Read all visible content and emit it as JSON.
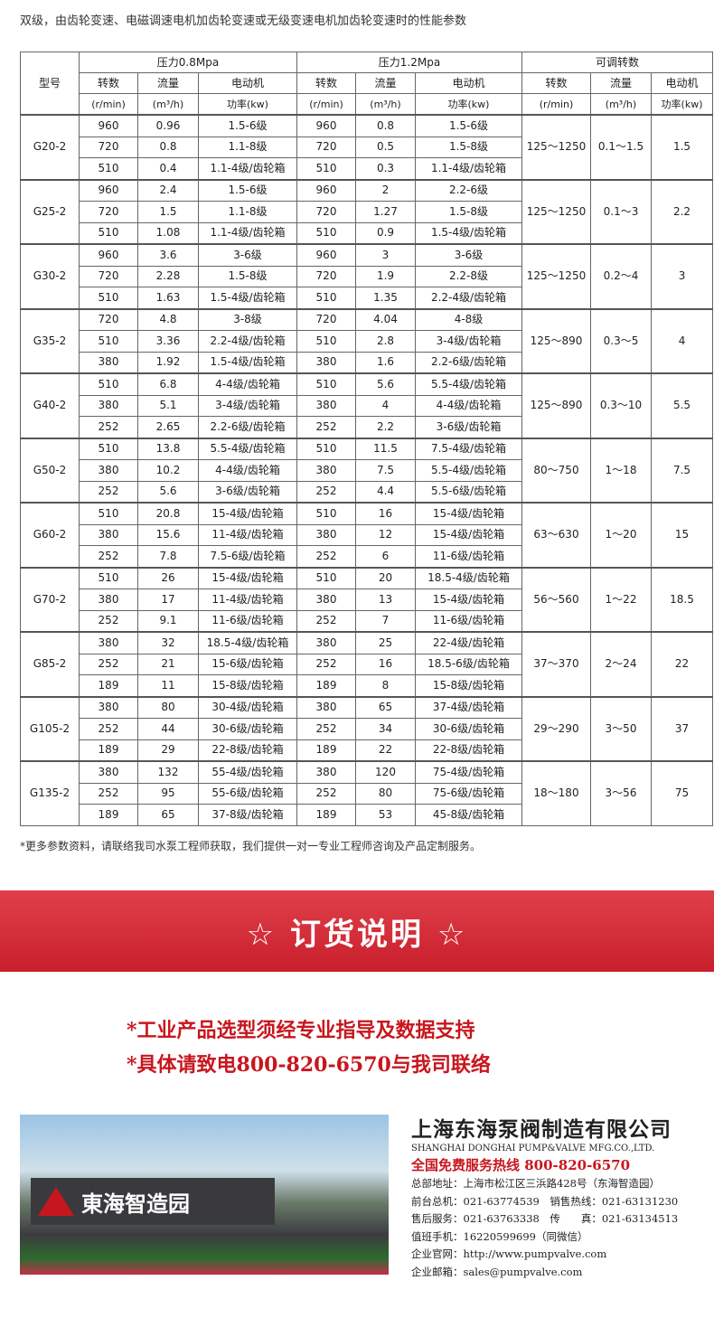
{
  "title": "双级，由齿轮变速、电磁调速电机加齿轮变速或无级变速电机加齿轮变速时的性能参数",
  "table": {
    "h_model": "型号",
    "h_p1": "压力0.8Mpa",
    "h_p2": "压力1.2Mpa",
    "h_adj": "可调转数",
    "sub": [
      "转数",
      "流量",
      "电动机",
      "转数",
      "流量",
      "电动机",
      "转数",
      "流量",
      "电动机"
    ],
    "units": [
      "(r/min)",
      "(m³/h)",
      "功率(kw)",
      "(r/min)",
      "(m³/h)",
      "功率(kw)",
      "(r/min)",
      "(m³/h)",
      "功率(kw)"
    ],
    "groups": [
      {
        "model": "G20-2",
        "rows": [
          [
            "960",
            "0.96",
            "1.5-6级",
            "960",
            "0.8",
            "1.5-6级"
          ],
          [
            "720",
            "0.8",
            "1.1-8级",
            "720",
            "0.5",
            "1.5-8级"
          ],
          [
            "510",
            "0.4",
            "1.1-4级/齿轮箱",
            "510",
            "0.3",
            "1.1-4级/齿轮箱"
          ]
        ],
        "adj_speed": "125～1250",
        "adj_flow": "0.1～1.5",
        "adj_power": "1.5"
      },
      {
        "model": "G25-2",
        "rows": [
          [
            "960",
            "2.4",
            "1.5-6级",
            "960",
            "2",
            "2.2-6级"
          ],
          [
            "720",
            "1.5",
            "1.1-8级",
            "720",
            "1.27",
            "1.5-8级"
          ],
          [
            "510",
            "1.08",
            "1.1-4级/齿轮箱",
            "510",
            "0.9",
            "1.5-4级/齿轮箱"
          ]
        ],
        "adj_speed": "125～1250",
        "adj_flow": "0.1～3",
        "adj_power": "2.2"
      },
      {
        "model": "G30-2",
        "rows": [
          [
            "960",
            "3.6",
            "3-6级",
            "960",
            "3",
            "3-6级"
          ],
          [
            "720",
            "2.28",
            "1.5-8级",
            "720",
            "1.9",
            "2.2-8级"
          ],
          [
            "510",
            "1.63",
            "1.5-4级/齿轮箱",
            "510",
            "1.35",
            "2.2-4级/齿轮箱"
          ]
        ],
        "adj_speed": "125～1250",
        "adj_flow": "0.2～4",
        "adj_power": "3"
      },
      {
        "model": "G35-2",
        "rows": [
          [
            "720",
            "4.8",
            "3-8级",
            "720",
            "4.04",
            "4-8级"
          ],
          [
            "510",
            "3.36",
            "2.2-4级/齿轮箱",
            "510",
            "2.8",
            "3-4级/齿轮箱"
          ],
          [
            "380",
            "1.92",
            "1.5-4级/齿轮箱",
            "380",
            "1.6",
            "2.2-6级/齿轮箱"
          ]
        ],
        "adj_speed": "125～890",
        "adj_flow": "0.3～5",
        "adj_power": "4"
      },
      {
        "model": "G40-2",
        "rows": [
          [
            "510",
            "6.8",
            "4-4级/齿轮箱",
            "510",
            "5.6",
            "5.5-4级/齿轮箱"
          ],
          [
            "380",
            "5.1",
            "3-4级/齿轮箱",
            "380",
            "4",
            "4-4级/齿轮箱"
          ],
          [
            "252",
            "2.65",
            "2.2-6级/齿轮箱",
            "252",
            "2.2",
            "3-6级/齿轮箱"
          ]
        ],
        "adj_speed": "125～890",
        "adj_flow": "0.3～10",
        "adj_power": "5.5"
      },
      {
        "model": "G50-2",
        "rows": [
          [
            "510",
            "13.8",
            "5.5-4级/齿轮箱",
            "510",
            "11.5",
            "7.5-4级/齿轮箱"
          ],
          [
            "380",
            "10.2",
            "4-4级/齿轮箱",
            "380",
            "7.5",
            "5.5-4级/齿轮箱"
          ],
          [
            "252",
            "5.6",
            "3-6级/齿轮箱",
            "252",
            "4.4",
            "5.5-6级/齿轮箱"
          ]
        ],
        "adj_speed": "80～750",
        "adj_flow": "1～18",
        "adj_power": "7.5"
      },
      {
        "model": "G60-2",
        "rows": [
          [
            "510",
            "20.8",
            "15-4级/齿轮箱",
            "510",
            "16",
            "15-4级/齿轮箱"
          ],
          [
            "380",
            "15.6",
            "11-4级/齿轮箱",
            "380",
            "12",
            "15-4级/齿轮箱"
          ],
          [
            "252",
            "7.8",
            "7.5-6级/齿轮箱",
            "252",
            "6",
            "11-6级/齿轮箱"
          ]
        ],
        "adj_speed": "63～630",
        "adj_flow": "1～20",
        "adj_power": "15"
      },
      {
        "model": "G70-2",
        "rows": [
          [
            "510",
            "26",
            "15-4级/齿轮箱",
            "510",
            "20",
            "18.5-4级/齿轮箱"
          ],
          [
            "380",
            "17",
            "11-4级/齿轮箱",
            "380",
            "13",
            "15-4级/齿轮箱"
          ],
          [
            "252",
            "9.1",
            "11-6级/齿轮箱",
            "252",
            "7",
            "11-6级/齿轮箱"
          ]
        ],
        "adj_speed": "56～560",
        "adj_flow": "1～22",
        "adj_power": "18.5"
      },
      {
        "model": "G85-2",
        "rows": [
          [
            "380",
            "32",
            "18.5-4级/齿轮箱",
            "380",
            "25",
            "22-4级/齿轮箱"
          ],
          [
            "252",
            "21",
            "15-6级/齿轮箱",
            "252",
            "16",
            "18.5-6级/齿轮箱"
          ],
          [
            "189",
            "11",
            "15-8级/齿轮箱",
            "189",
            "8",
            "15-8级/齿轮箱"
          ]
        ],
        "adj_speed": "37～370",
        "adj_flow": "2～24",
        "adj_power": "22"
      },
      {
        "model": "G105-2",
        "rows": [
          [
            "380",
            "80",
            "30-4级/齿轮箱",
            "380",
            "65",
            "37-4级/齿轮箱"
          ],
          [
            "252",
            "44",
            "30-6级/齿轮箱",
            "252",
            "34",
            "30-6级/齿轮箱"
          ],
          [
            "189",
            "29",
            "22-8级/齿轮箱",
            "189",
            "22",
            "22-8级/齿轮箱"
          ]
        ],
        "adj_speed": "29～290",
        "adj_flow": "3～50",
        "adj_power": "37"
      },
      {
        "model": "G135-2",
        "rows": [
          [
            "380",
            "132",
            "55-4级/齿轮箱",
            "380",
            "120",
            "75-4级/齿轮箱"
          ],
          [
            "252",
            "95",
            "55-6级/齿轮箱",
            "252",
            "80",
            "75-6级/齿轮箱"
          ],
          [
            "189",
            "65",
            "37-8级/齿轮箱",
            "189",
            "53",
            "45-8级/齿轮箱"
          ]
        ],
        "adj_speed": "18～180",
        "adj_flow": "3～56",
        "adj_power": "75"
      }
    ]
  },
  "note": "*更多参数资料，请联络我司水泵工程师获取，我们提供一对一专业工程师咨询及产品定制服务。",
  "banner": "☆ 订货说明 ☆",
  "order_lines": [
    "*工业产品选型须经专业指导及数据支持",
    "*具体请致电800-820-6570与我司联络"
  ],
  "photo_sign": "東海智造园",
  "company": {
    "name_cn": "上海东海泵阀制造有限公司",
    "name_en": "SHANGHAI DONGHAI PUMP&VALVE MFG.CO.,LTD.",
    "hotline": "全国免费服务热线 800-820-6570",
    "lines": [
      "总部地址：上海市松江区三浜路428号（东海智造园）",
      "前台总机：021-63774539　销售热线：021-63131230",
      "售后服务：021-63763338　传　　真：021-63134513",
      "值班手机：16220599699（同微信）",
      "企业官网：http://www.pumpvalve.com",
      "企业邮箱：sales@pumpvalve.com"
    ]
  },
  "colors": {
    "accent": "#c8161e"
  }
}
